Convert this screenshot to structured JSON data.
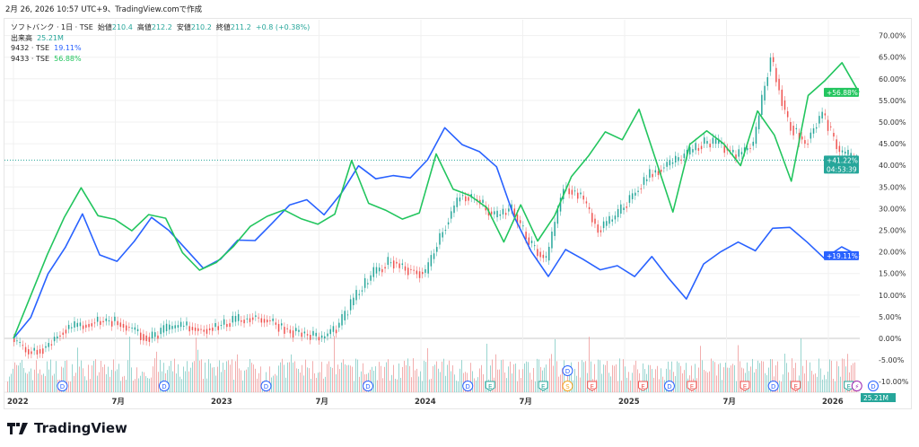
{
  "caption": "2月 26, 2026 10:57 UTC+9、TradingView.comで作成",
  "legend": {
    "main_symbol": "ソフトバンク · 1日 · TSE",
    "open_label": "始値",
    "open": "210.4",
    "high_label": "高値",
    "high": "212.2",
    "low_label": "安値",
    "low": "210.2",
    "close_label": "終値",
    "close": "211.2",
    "change": "+0.8 (+0.38%)",
    "volume_label": "出来高",
    "volume": "25.21M",
    "s2_name": "9432 · TSE",
    "s2_value": "19.11%",
    "s3_name": "9433 · TSE",
    "s3_value": "56.88%"
  },
  "logo": "TradingView",
  "chart_data": {
    "type": "line",
    "ylim": [
      -10,
      70
    ],
    "y_ticks": [
      "70.00%",
      "65.00%",
      "60.00%",
      "55.00%",
      "50.00%",
      "45.00%",
      "40.00%",
      "35.00%",
      "30.00%",
      "25.00%",
      "20.00%",
      "15.00%",
      "10.00%",
      "5.00%",
      "0.00%",
      "-5.00%",
      "-10.00%"
    ],
    "x_ticks": [
      {
        "label": "2022",
        "t": 2022.0
      },
      {
        "label": "7月",
        "t": 2022.5
      },
      {
        "label": "2023",
        "t": 2023.0
      },
      {
        "label": "7月",
        "t": 2023.5
      },
      {
        "label": "2024",
        "t": 2024.0
      },
      {
        "label": "7月",
        "t": 2024.5
      },
      {
        "label": "2025",
        "t": 2025.0
      },
      {
        "label": "7月",
        "t": 2025.5
      },
      {
        "label": "2026",
        "t": 2026.0
      }
    ],
    "grid": true,
    "series": [
      {
        "name": "ソフトバンク",
        "color": "#26a69a",
        "down_color": "#ef5350",
        "style": "candles",
        "last_label": "+41.22%",
        "countdown": "04:53:39",
        "values": [
          0,
          -3,
          -2,
          2,
          3,
          4,
          4,
          2,
          0,
          2,
          3,
          2,
          3,
          4,
          5,
          4,
          2,
          1,
          0,
          3,
          10,
          15,
          18,
          16,
          15,
          25,
          33,
          32,
          28,
          30,
          22,
          18,
          35,
          33,
          25,
          28,
          33,
          38,
          40,
          42,
          45,
          45,
          42,
          45,
          65,
          50,
          45,
          52,
          43,
          41.22
        ]
      },
      {
        "name": "9432 · TSE",
        "color": "#2962ff",
        "last_label": "+19.11%",
        "values": [
          0,
          5,
          15,
          22,
          28,
          20,
          18,
          22,
          27,
          24,
          20,
          17,
          18,
          22,
          23,
          26,
          30,
          33,
          28,
          33,
          40,
          36,
          37,
          38,
          42,
          48,
          44,
          44,
          40,
          28,
          20,
          14,
          20,
          19,
          16,
          17,
          15,
          18,
          14,
          9,
          18,
          20,
          22,
          21,
          25,
          26,
          22,
          18,
          22,
          19.11
        ]
      },
      {
        "name": "9433 · TSE",
        "color": "#22c55e",
        "last_label": "+56.88%",
        "values": [
          0,
          10,
          20,
          28,
          34,
          28,
          27,
          25,
          28,
          27,
          20,
          16,
          17,
          22,
          25,
          28,
          30,
          27,
          26,
          28,
          42,
          32,
          30,
          28,
          30,
          42,
          35,
          34,
          30,
          22,
          30,
          22,
          28,
          38,
          42,
          47,
          45,
          53,
          42,
          29,
          45,
          48,
          45,
          40,
          52,
          48,
          37,
          57,
          60,
          64,
          56.88
        ]
      }
    ],
    "volume_last": "25.21M",
    "events": [
      {
        "type": "D",
        "t": 2022.24
      },
      {
        "type": "D",
        "t": 2022.74
      },
      {
        "type": "D",
        "t": 2023.24
      },
      {
        "type": "D",
        "t": 2023.74
      },
      {
        "type": "D",
        "t": 2024.23
      },
      {
        "type": "E",
        "t": 2024.34
      },
      {
        "type": "E",
        "t": 2024.6
      },
      {
        "type": "D",
        "t": 2024.72
      },
      {
        "type": "S",
        "t": 2024.72
      },
      {
        "type": "E",
        "t": 2024.84
      },
      {
        "type": "E",
        "t": 2025.09
      },
      {
        "type": "D",
        "t": 2025.22
      },
      {
        "type": "E",
        "t": 2025.33
      },
      {
        "type": "E",
        "t": 2025.59
      },
      {
        "type": "D",
        "t": 2025.73
      },
      {
        "type": "E",
        "t": 2025.84
      },
      {
        "type": "E",
        "t": 2026.1
      },
      {
        "type": "⚡",
        "t": 2026.14
      },
      {
        "type": "D",
        "t": 2026.22
      }
    ]
  }
}
